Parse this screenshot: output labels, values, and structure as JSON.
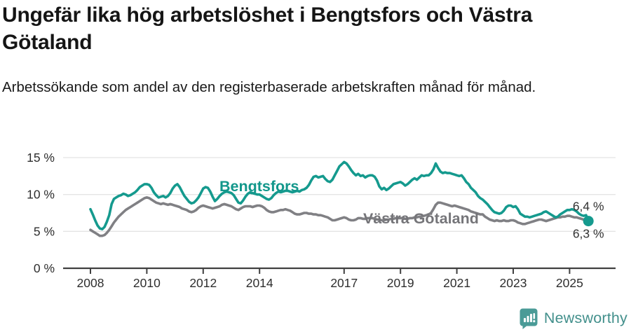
{
  "page": {
    "title": "Ungefär lika hög arbetslöshet i Bengtsfors och Västra Götaland",
    "subtitle": "Arbetssökande som andel av den registerbaserade arbetskraften månad för månad."
  },
  "footer": {
    "brand": "Newsworthy",
    "brand_color": "#43908c",
    "logo_icon": "bar-chart-speech-bubble-icon",
    "logo_icon_color": "#4a9b97"
  },
  "chart_data": {
    "type": "line",
    "unit": "%",
    "frequency": "monthly",
    "x_start": "2008-01",
    "x_end": "2025-09",
    "ylim": [
      0,
      15
    ],
    "grid": "horizontal",
    "grid_color": "#e4e4e4",
    "axis_color": "#404040",
    "axis_text_color": "#2e2e2e",
    "end_label_color": "#333333",
    "yticks": [
      {
        "value": 0,
        "label": "0 %"
      },
      {
        "value": 5,
        "label": "5 %"
      },
      {
        "value": 10,
        "label": "10 %"
      },
      {
        "value": 15,
        "label": "15 %"
      }
    ],
    "xticks": [
      {
        "year": 2008,
        "label": "2008"
      },
      {
        "year": 2010,
        "label": "2010"
      },
      {
        "year": 2012,
        "label": "2012"
      },
      {
        "year": 2014,
        "label": "2014"
      },
      {
        "year": 2017,
        "label": "2017"
      },
      {
        "year": 2019,
        "label": "2019"
      },
      {
        "year": 2021,
        "label": "2021"
      },
      {
        "year": 2023,
        "label": "2023"
      },
      {
        "year": 2025,
        "label": "2025"
      }
    ],
    "series": [
      {
        "name": "Bengtsfors",
        "color": "#159a8e",
        "label_color": "#12978b",
        "label_pos": {
          "x": 313,
          "y": 273
        },
        "end_label": "6,4 %",
        "end_value": 6.4,
        "end_dot": true,
        "values": [
          8.0,
          7.3,
          6.5,
          5.8,
          5.4,
          5.3,
          5.6,
          6.3,
          7.2,
          8.7,
          9.4,
          9.6,
          9.8,
          9.9,
          10.1,
          10.0,
          9.8,
          9.9,
          10.1,
          10.3,
          10.6,
          11.0,
          11.2,
          11.4,
          11.4,
          11.3,
          10.9,
          10.3,
          9.9,
          9.6,
          9.7,
          9.8,
          9.6,
          9.8,
          10.2,
          10.8,
          11.2,
          11.4,
          11.0,
          10.4,
          9.8,
          9.4,
          9.0,
          8.8,
          8.9,
          9.2,
          9.6,
          10.2,
          10.8,
          11.0,
          10.9,
          10.4,
          9.7,
          9.1,
          9.4,
          9.8,
          10.1,
          10.3,
          10.4,
          10.3,
          10.2,
          9.9,
          9.4,
          8.9,
          8.8,
          9.2,
          9.7,
          10.1,
          10.3,
          10.2,
          10.1,
          10.0,
          10.0,
          9.8,
          9.6,
          9.4,
          9.3,
          9.5,
          9.9,
          10.2,
          10.4,
          10.3,
          10.4,
          10.5,
          10.5,
          10.4,
          10.3,
          10.4,
          10.5,
          10.4,
          10.6,
          10.7,
          10.9,
          11.3,
          11.9,
          12.4,
          12.5,
          12.3,
          12.4,
          12.5,
          12.1,
          11.8,
          11.7,
          12.0,
          12.6,
          13.2,
          13.8,
          14.1,
          14.4,
          14.2,
          13.8,
          13.3,
          12.9,
          12.6,
          12.8,
          12.5,
          12.6,
          12.3,
          12.5,
          12.6,
          12.6,
          12.4,
          11.9,
          11.1,
          10.7,
          10.9,
          10.6,
          10.8,
          11.1,
          11.4,
          11.5,
          11.6,
          11.7,
          11.5,
          11.2,
          11.4,
          11.7,
          12.0,
          12.2,
          12.0,
          12.3,
          12.6,
          12.5,
          12.6,
          12.6,
          12.9,
          13.4,
          14.2,
          13.6,
          13.1,
          12.9,
          13.0,
          12.9,
          12.9,
          12.8,
          12.7,
          12.6,
          12.5,
          12.6,
          12.2,
          11.7,
          11.4,
          10.9,
          10.6,
          10.3,
          9.8,
          9.5,
          9.3,
          9.0,
          8.7,
          8.3,
          7.9,
          7.6,
          7.5,
          7.4,
          7.5,
          7.8,
          8.3,
          8.5,
          8.5,
          8.3,
          8.4,
          8.0,
          7.4,
          7.2,
          7.0,
          7.0,
          6.9,
          7.0,
          7.1,
          7.2,
          7.3,
          7.4,
          7.6,
          7.7,
          7.5,
          7.3,
          7.1,
          6.9,
          7.0,
          7.3,
          7.5,
          7.7,
          7.9,
          7.9,
          8.0,
          7.9,
          7.7,
          7.4,
          7.2,
          7.1,
          7.2,
          6.4
        ]
      },
      {
        "name": "Västra Götaland",
        "color": "#808084",
        "label_color": "#757579",
        "label_pos": {
          "x": 518,
          "y": 319
        },
        "end_label": "6,3 %",
        "end_value": 6.3,
        "end_dot": false,
        "values": [
          5.2,
          5.0,
          4.8,
          4.6,
          4.4,
          4.4,
          4.5,
          4.8,
          5.2,
          5.7,
          6.2,
          6.6,
          7.0,
          7.3,
          7.6,
          7.9,
          8.1,
          8.3,
          8.5,
          8.7,
          8.9,
          9.1,
          9.3,
          9.5,
          9.6,
          9.5,
          9.3,
          9.1,
          8.9,
          8.8,
          8.7,
          8.8,
          8.7,
          8.6,
          8.7,
          8.6,
          8.5,
          8.4,
          8.3,
          8.1,
          8.0,
          7.9,
          7.7,
          7.6,
          7.7,
          7.9,
          8.2,
          8.4,
          8.5,
          8.4,
          8.3,
          8.2,
          8.1,
          8.2,
          8.3,
          8.4,
          8.6,
          8.7,
          8.6,
          8.5,
          8.4,
          8.2,
          8.0,
          7.9,
          8.1,
          8.3,
          8.4,
          8.4,
          8.4,
          8.3,
          8.4,
          8.5,
          8.5,
          8.4,
          8.2,
          7.9,
          7.7,
          7.6,
          7.6,
          7.7,
          7.8,
          7.9,
          7.9,
          8.0,
          7.9,
          7.8,
          7.6,
          7.4,
          7.3,
          7.3,
          7.4,
          7.5,
          7.5,
          7.4,
          7.4,
          7.3,
          7.3,
          7.2,
          7.2,
          7.1,
          7.0,
          6.9,
          6.7,
          6.5,
          6.5,
          6.6,
          6.7,
          6.8,
          6.9,
          6.8,
          6.6,
          6.5,
          6.5,
          6.6,
          6.8,
          6.8,
          6.7,
          6.7,
          6.8,
          6.8,
          6.8,
          6.7,
          6.6,
          6.6,
          6.5,
          6.5,
          6.6,
          6.6,
          6.7,
          6.7,
          6.8,
          6.8,
          6.8,
          6.8,
          6.7,
          6.7,
          6.8,
          6.8,
          6.9,
          6.9,
          7.0,
          7.0,
          7.1,
          7.2,
          7.3,
          7.5,
          8.0,
          8.6,
          8.9,
          8.9,
          8.8,
          8.7,
          8.6,
          8.5,
          8.4,
          8.5,
          8.4,
          8.3,
          8.2,
          8.1,
          8.0,
          7.9,
          7.7,
          7.6,
          7.5,
          7.4,
          7.3,
          7.3,
          7.0,
          6.8,
          6.6,
          6.5,
          6.4,
          6.5,
          6.4,
          6.4,
          6.5,
          6.4,
          6.4,
          6.5,
          6.5,
          6.4,
          6.2,
          6.1,
          6.0,
          6.0,
          6.1,
          6.2,
          6.3,
          6.4,
          6.5,
          6.6,
          6.6,
          6.5,
          6.4,
          6.5,
          6.6,
          6.7,
          6.8,
          6.9,
          6.9,
          7.0,
          7.0,
          7.1,
          7.1,
          7.0,
          6.9,
          6.9,
          6.8,
          6.7,
          6.6,
          6.5,
          6.3
        ]
      }
    ]
  }
}
